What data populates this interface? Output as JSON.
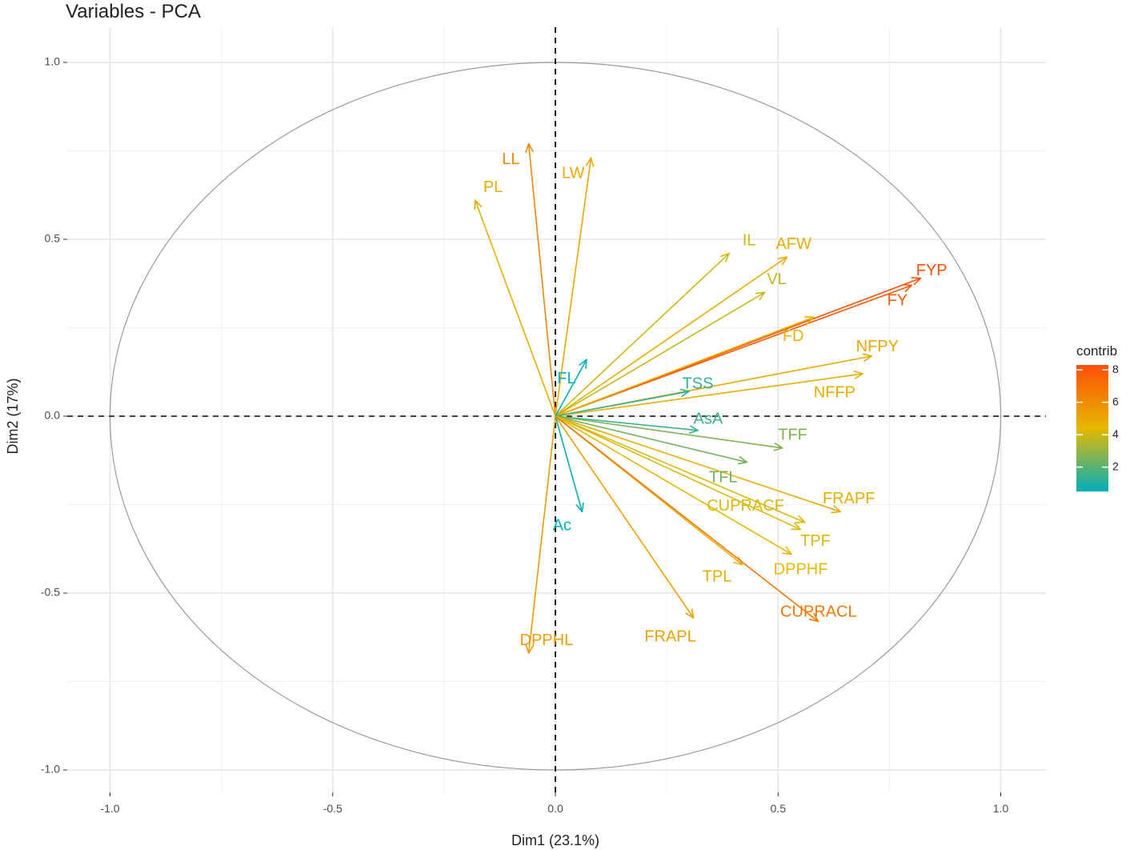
{
  "chart_data": {
    "type": "scatter",
    "subtype": "pca-variable-correlation-circle",
    "title": "Variables - PCA",
    "xlabel": "Dim1 (23.1%)",
    "ylabel": "Dim2 (17%)",
    "xlim": [
      -1.0,
      1.0
    ],
    "ylim": [
      -1.0,
      1.0
    ],
    "x_ticks": [
      -1.0,
      -0.5,
      0.0,
      0.5,
      1.0
    ],
    "x_tick_labels": [
      "-1.0",
      "-0.5",
      "0.0",
      "0.5",
      "1.0"
    ],
    "y_ticks": [
      -1.0,
      -0.5,
      0.0,
      0.5,
      1.0
    ],
    "y_tick_labels": [
      "-1.0",
      "-0.5",
      "0.0",
      "0.5",
      "1.0"
    ],
    "grid": true,
    "legend": {
      "title": "contrib",
      "position": "right",
      "range": [
        0.5,
        8.3
      ],
      "ticks": [
        2,
        4,
        6,
        8
      ],
      "tick_labels": [
        "2",
        "4",
        "6",
        "8"
      ],
      "low_color": "#00AFBB",
      "mid_color": "#E7B800",
      "high_color": "#FC4E07"
    },
    "series": [
      {
        "name": "LL",
        "x": -0.06,
        "y": 0.77,
        "contrib": 6.2
      },
      {
        "name": "LW",
        "x": 0.08,
        "y": 0.73,
        "contrib": 5.0
      },
      {
        "name": "PL",
        "x": -0.18,
        "y": 0.61,
        "contrib": 4.8
      },
      {
        "name": "IL",
        "x": 0.39,
        "y": 0.46,
        "contrib": 4.0
      },
      {
        "name": "AFW",
        "x": 0.52,
        "y": 0.45,
        "contrib": 4.8
      },
      {
        "name": "VL",
        "x": 0.47,
        "y": 0.35,
        "contrib": 3.8
      },
      {
        "name": "FYP",
        "x": 0.82,
        "y": 0.39,
        "contrib": 8.2
      },
      {
        "name": "FY",
        "x": 0.8,
        "y": 0.37,
        "contrib": 7.9
      },
      {
        "name": "FD",
        "x": 0.58,
        "y": 0.28,
        "contrib": 4.6
      },
      {
        "name": "NFPY",
        "x": 0.71,
        "y": 0.17,
        "contrib": 5.0
      },
      {
        "name": "NFFP",
        "x": 0.69,
        "y": 0.12,
        "contrib": 4.8
      },
      {
        "name": "FL",
        "x": 0.07,
        "y": 0.16,
        "contrib": 0.5
      },
      {
        "name": "TSS",
        "x": 0.3,
        "y": 0.07,
        "contrib": 1.4
      },
      {
        "name": "AsA",
        "x": 0.32,
        "y": -0.04,
        "contrib": 1.5
      },
      {
        "name": "TFF",
        "x": 0.51,
        "y": -0.09,
        "contrib": 2.7
      },
      {
        "name": "TFL",
        "x": 0.43,
        "y": -0.13,
        "contrib": 2.4
      },
      {
        "name": "FRAPF",
        "x": 0.64,
        "y": -0.27,
        "contrib": 4.8
      },
      {
        "name": "CUPRACF",
        "x": 0.56,
        "y": -0.3,
        "contrib": 4.2
      },
      {
        "name": "TPF",
        "x": 0.55,
        "y": -0.32,
        "contrib": 4.2
      },
      {
        "name": "DPPHF",
        "x": 0.53,
        "y": -0.39,
        "contrib": 4.4
      },
      {
        "name": "TPL",
        "x": 0.42,
        "y": -0.42,
        "contrib": 4.8
      },
      {
        "name": "CUPRACL",
        "x": 0.59,
        "y": -0.58,
        "contrib": 6.8
      },
      {
        "name": "FRAPL",
        "x": 0.31,
        "y": -0.57,
        "contrib": 5.2
      },
      {
        "name": "Ac",
        "x": 0.06,
        "y": -0.27,
        "contrib": 0.6
      },
      {
        "name": "DPPHL",
        "x": -0.06,
        "y": -0.67,
        "contrib": 5.4
      }
    ],
    "labels": [
      {
        "name": "LL",
        "text": "LL",
        "x": -0.1,
        "y": 0.725,
        "anchor": "middle"
      },
      {
        "name": "LW",
        "text": "LW",
        "x": 0.04,
        "y": 0.685,
        "anchor": "middle"
      },
      {
        "name": "PL",
        "text": "PL",
        "x": -0.14,
        "y": 0.645,
        "anchor": "middle"
      },
      {
        "name": "IL",
        "text": "IL",
        "x": 0.42,
        "y": 0.495,
        "anchor": "start"
      },
      {
        "name": "AFW",
        "text": "AFW",
        "x": 0.495,
        "y": 0.485,
        "anchor": "start"
      },
      {
        "name": "VL",
        "text": "VL",
        "x": 0.475,
        "y": 0.385,
        "anchor": "start"
      },
      {
        "name": "FYP",
        "text": "FYP",
        "x": 0.81,
        "y": 0.41,
        "anchor": "start"
      },
      {
        "name": "FY",
        "text": "FY",
        "x": 0.745,
        "y": 0.325,
        "anchor": "start"
      },
      {
        "name": "FD",
        "text": "FD",
        "x": 0.51,
        "y": 0.225,
        "anchor": "start"
      },
      {
        "name": "NFPY",
        "text": "NFPY",
        "x": 0.675,
        "y": 0.195,
        "anchor": "start"
      },
      {
        "name": "NFFP",
        "text": "NFFP",
        "x": 0.58,
        "y": 0.065,
        "anchor": "start"
      },
      {
        "name": "FL",
        "text": "FL",
        "x": 0.025,
        "y": 0.105,
        "anchor": "middle"
      },
      {
        "name": "TSS",
        "text": "TSS",
        "x": 0.285,
        "y": 0.09,
        "anchor": "start"
      },
      {
        "name": "AsA",
        "text": "AsA",
        "x": 0.31,
        "y": -0.01,
        "anchor": "start"
      },
      {
        "name": "TFF",
        "text": "TFF",
        "x": 0.5,
        "y": -0.055,
        "anchor": "start"
      },
      {
        "name": "TFL",
        "text": "TFL",
        "x": 0.345,
        "y": -0.175,
        "anchor": "start"
      },
      {
        "name": "FRAPF",
        "text": "FRAPF",
        "x": 0.6,
        "y": -0.235,
        "anchor": "start"
      },
      {
        "name": "CUPRACF",
        "text": "CUPRACF",
        "x": 0.34,
        "y": -0.255,
        "anchor": "start"
      },
      {
        "name": "TPF",
        "text": "TPF",
        "x": 0.55,
        "y": -0.355,
        "anchor": "start"
      },
      {
        "name": "DPPHF",
        "text": "DPPHF",
        "x": 0.49,
        "y": -0.435,
        "anchor": "start"
      },
      {
        "name": "TPL",
        "text": "TPL",
        "x": 0.33,
        "y": -0.455,
        "anchor": "start"
      },
      {
        "name": "CUPRACL",
        "text": "CUPRACL",
        "x": 0.505,
        "y": -0.555,
        "anchor": "start"
      },
      {
        "name": "FRAPL",
        "text": "FRAPL",
        "x": 0.2,
        "y": -0.625,
        "anchor": "start"
      },
      {
        "name": "Ac",
        "text": "Ac",
        "x": 0.015,
        "y": -0.31,
        "anchor": "middle"
      },
      {
        "name": "DPPHL",
        "text": "DPPHL",
        "x": -0.02,
        "y": -0.635,
        "anchor": "middle"
      }
    ]
  }
}
